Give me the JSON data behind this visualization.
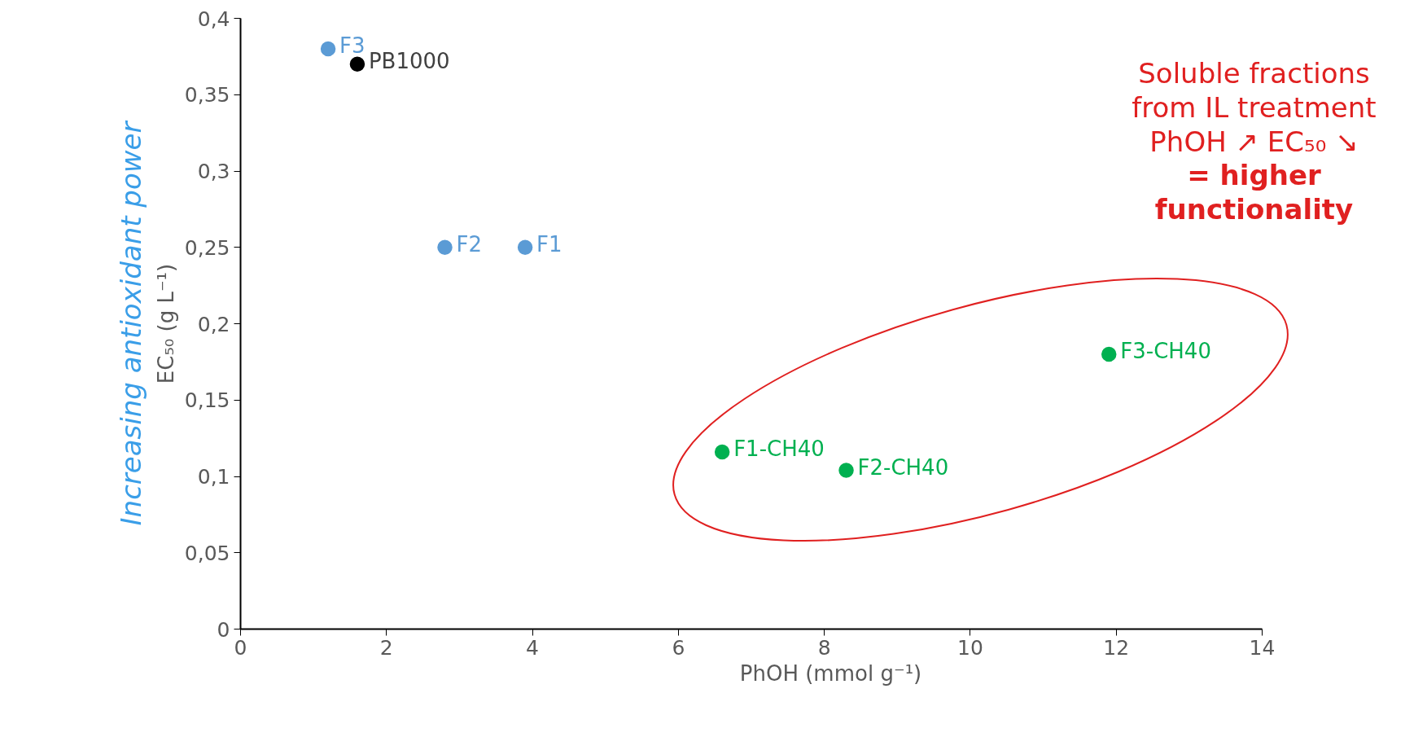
{
  "chart_data": {
    "type": "scatter",
    "xlabel": "PhOH (mmol g⁻¹)",
    "ylabel": "EC₅₀ (g L⁻¹)",
    "series": [
      {
        "name": "F3",
        "color": "#5b9bd5",
        "x": [
          1.2
        ],
        "values": [
          0.38
        ]
      },
      {
        "name": "PB1000",
        "color": "#000000",
        "x": [
          1.6
        ],
        "values": [
          0.37
        ]
      },
      {
        "name": "F2",
        "color": "#5b9bd5",
        "x": [
          2.8
        ],
        "values": [
          0.25
        ]
      },
      {
        "name": "F1",
        "color": "#5b9bd5",
        "x": [
          3.9
        ],
        "values": [
          0.25
        ]
      },
      {
        "name": "F1-CH40",
        "color": "#00b050",
        "x": [
          6.6
        ],
        "values": [
          0.116
        ]
      },
      {
        "name": "F2-CH40",
        "color": "#00b050",
        "x": [
          8.3
        ],
        "values": [
          0.104
        ]
      },
      {
        "name": "F3-CH40",
        "color": "#00b050",
        "x": [
          11.9
        ],
        "values": [
          0.18
        ]
      }
    ],
    "xlim": [
      0,
      14
    ],
    "xticks": [
      0,
      2,
      4,
      6,
      8,
      10,
      12,
      14
    ],
    "ylim": [
      0,
      0.4
    ],
    "yticks": [
      {
        "value": 0,
        "label": "0"
      },
      {
        "value": 0.05,
        "label": "0,05"
      },
      {
        "value": 0.1,
        "label": "0,1"
      },
      {
        "value": 0.15,
        "label": "0,15"
      },
      {
        "value": 0.2,
        "label": "0,2"
      },
      {
        "value": 0.25,
        "label": "0,25"
      },
      {
        "value": 0.3,
        "label": "0,3"
      },
      {
        "value": 0.35,
        "label": "0,35"
      },
      {
        "value": 0.4,
        "label": "0,4"
      }
    ],
    "grid": false,
    "marker": "circle",
    "annotations": [
      "Soluble fractions\nfrom IL treatment\nPhOH ↗ EC₅₀ ↘",
      "= higher\nfunctionality",
      "Increasing antioxidant power"
    ]
  }
}
